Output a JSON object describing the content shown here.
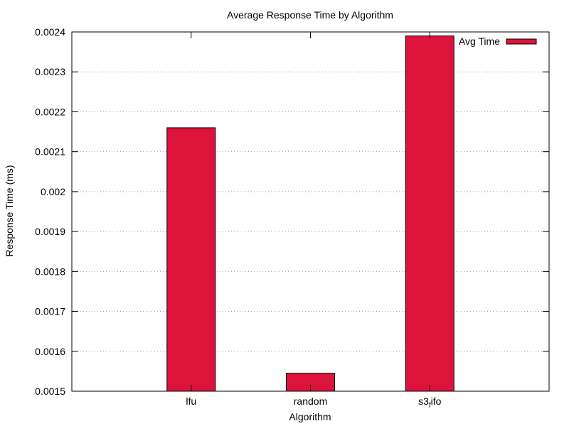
{
  "chart_data": {
    "type": "bar",
    "title": "Average Response Time by Algorithm",
    "xlabel": "Algorithm",
    "ylabel": "Response Time (ms)",
    "categories": [
      "lfu",
      "random",
      "s3fifo"
    ],
    "category_display": [
      {
        "main": "lfu",
        "sub": ""
      },
      {
        "main": "random",
        "sub": ""
      },
      {
        "main": "s3",
        "sub": "f",
        "rest": "ifo"
      }
    ],
    "series": [
      {
        "name": "Avg Time",
        "values": [
          0.00216,
          0.001545,
          0.00239
        ],
        "color": "#dc143c"
      }
    ],
    "ylim": [
      0.0015,
      0.0024
    ],
    "yticks": [
      0.0015,
      0.0016,
      0.0017,
      0.0018,
      0.0019,
      0.002,
      0.0021,
      0.0022,
      0.0023,
      0.0024
    ],
    "ytick_labels": [
      "0.0015",
      "0.0016",
      "0.0017",
      "0.0018",
      "0.0019",
      "0.002",
      "0.0021",
      "0.0022",
      "0.0023",
      "0.0024"
    ],
    "grid": "y-dotted",
    "legend_position": "top-right"
  }
}
